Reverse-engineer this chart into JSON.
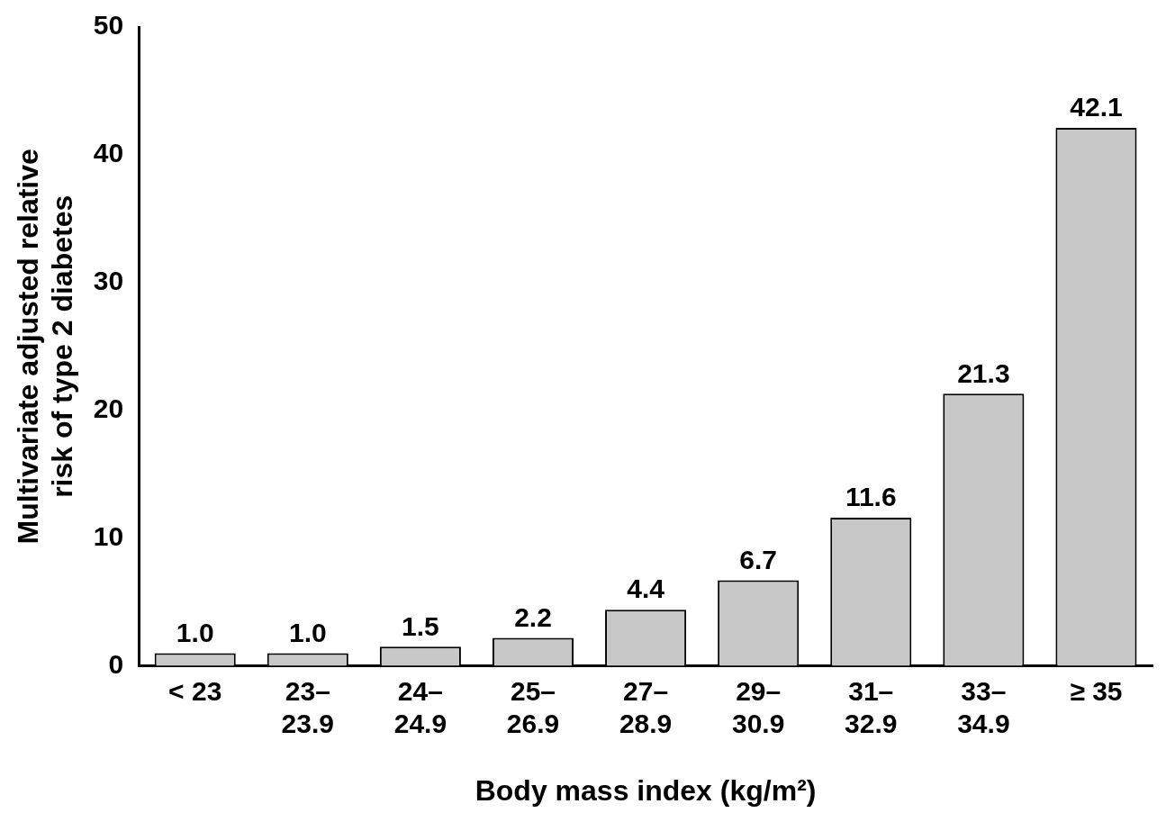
{
  "chart_data": {
    "type": "bar",
    "xlabel": "Body mass index (kg/m²)",
    "ylabel": "Multivariate adjusted relative risk of type 2 diabetes",
    "categories": [
      "< 23",
      "23–23.9",
      "24–24.9",
      "25–26.9",
      "27–28.9",
      "29–30.9",
      "31–32.9",
      "33–34.9",
      "≥ 35"
    ],
    "values": [
      1.0,
      1.0,
      1.5,
      2.2,
      4.4,
      6.7,
      11.6,
      21.3,
      42.1
    ],
    "value_labels": [
      "1.0",
      "1.0",
      "1.5",
      "2.2",
      "4.4",
      "6.7",
      "11.6",
      "21.3",
      "42.1"
    ],
    "color": "#c8c8c8",
    "ylim": [
      0,
      50
    ],
    "yticks": [
      0,
      10,
      20,
      30,
      40,
      50
    ],
    "grid": false,
    "legend": false
  }
}
